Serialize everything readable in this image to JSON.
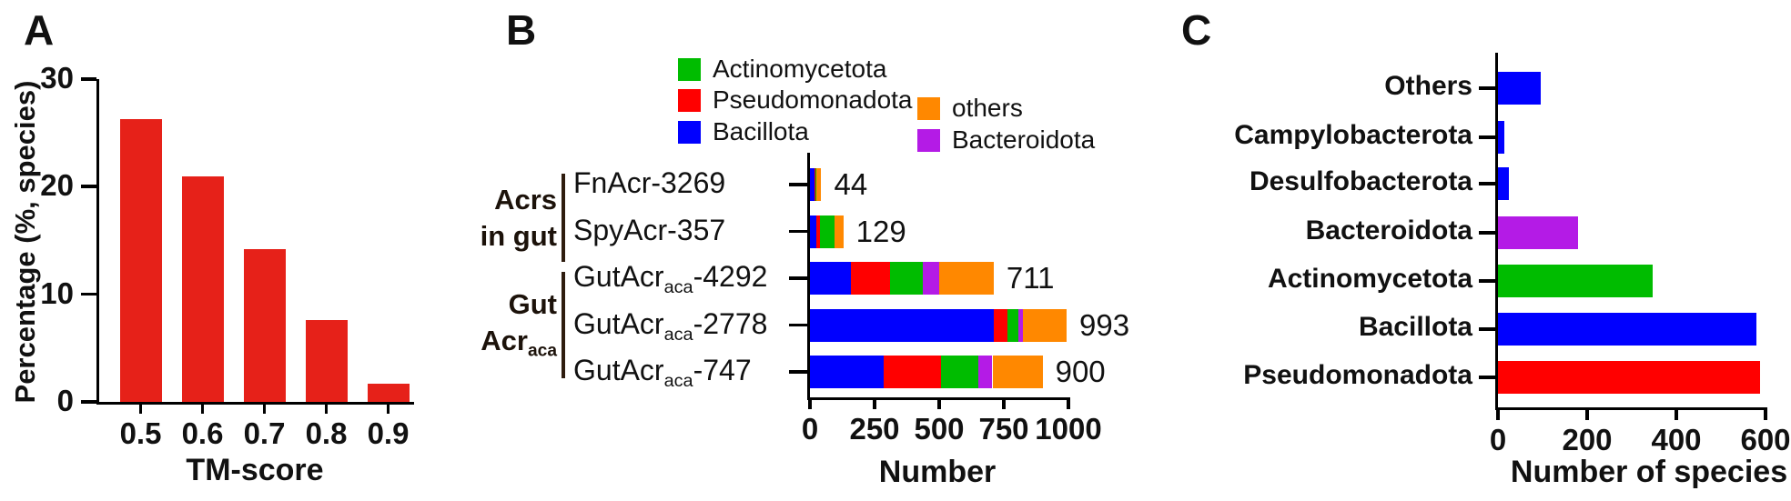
{
  "panels": {
    "a": {
      "letter": "A"
    },
    "b": {
      "letter": "B"
    },
    "c": {
      "letter": "C"
    }
  },
  "colors": {
    "panel_a_bar_red": "#e62119",
    "bacillota_blue": "#0000ff",
    "pseudomonadota_red": "#ff0000",
    "actinomycetota_green": "#00bc00",
    "others_orange": "#ff8800",
    "bacteroidota_purple": "#b41be6",
    "axis_black": "#000000"
  },
  "chart_data": [
    {
      "panel": "A",
      "type": "bar",
      "categories": [
        "0.5",
        "0.6",
        "0.7",
        "0.8",
        "0.9"
      ],
      "values": [
        26.3,
        21,
        14.2,
        7.6,
        1.7
      ],
      "xlabel": "TM-score",
      "ylabel": "Percentage (%, species)",
      "ylim": [
        0,
        30
      ],
      "yticks": [
        0,
        10,
        20,
        30
      ],
      "bar_color": "#e62119",
      "grid": false
    },
    {
      "panel": "B",
      "type": "stacked_bar_horizontal",
      "xlabel": "Number",
      "xlim": [
        0,
        1000
      ],
      "xticks": [
        0,
        250,
        500,
        750,
        1000
      ],
      "legend": [
        {
          "label": "Actinomycetota",
          "color": "#00bc00"
        },
        {
          "label": "Pseudomonadota",
          "color": "#ff0000"
        },
        {
          "label": "Bacillota",
          "color": "#0000ff"
        },
        {
          "label": "others",
          "color": "#ff8800"
        },
        {
          "label": "Bacteroidota",
          "color": "#b41be6"
        }
      ],
      "group_labels": [
        {
          "line1": "Acrs",
          "line2_main": "in gut",
          "line2_sub": ""
        },
        {
          "line1": "Gut",
          "line2_main": "Acr",
          "line2_sub": "aca"
        }
      ],
      "rows": [
        {
          "label": "FnAcr-3269",
          "label_parts": {
            "main": "FnAcr-3269",
            "sub": "",
            "suffix": ""
          },
          "group": "Acrs in gut",
          "total": 44,
          "segments": [
            {
              "name": "Bacillota",
              "value": 16
            },
            {
              "name": "Pseudomonadota",
              "value": 4
            },
            {
              "name": "Actinomycetota",
              "value": 4
            },
            {
              "name": "Bacteroidota",
              "value": 2
            },
            {
              "name": "others",
              "value": 18
            }
          ]
        },
        {
          "label": "SpyAcr-357",
          "label_parts": {
            "main": "SpyAcr-357",
            "sub": "",
            "suffix": ""
          },
          "group": "Acrs in gut",
          "total": 129,
          "segments": [
            {
              "name": "Bacillota",
              "value": 24
            },
            {
              "name": "Pseudomonadota",
              "value": 14
            },
            {
              "name": "Actinomycetota",
              "value": 56
            },
            {
              "name": "others",
              "value": 35
            }
          ]
        },
        {
          "label": "GutAcr aca -4292",
          "label_parts": {
            "main": "GutAcr",
            "sub": "aca",
            "suffix": "-4292"
          },
          "group": "Gut Acr aca",
          "total": 711,
          "segments": [
            {
              "name": "Bacillota",
              "value": 160
            },
            {
              "name": "Pseudomonadota",
              "value": 150
            },
            {
              "name": "Actinomycetota",
              "value": 125
            },
            {
              "name": "Bacteroidota",
              "value": 66
            },
            {
              "name": "others",
              "value": 210
            }
          ]
        },
        {
          "label": "GutAcr aca -2778",
          "label_parts": {
            "main": "GutAcr",
            "sub": "aca",
            "suffix": "-2778"
          },
          "group": "Gut Acr aca",
          "total": 993,
          "segments": [
            {
              "name": "Bacillota",
              "value": 711
            },
            {
              "name": "Pseudomonadota",
              "value": 52
            },
            {
              "name": "Actinomycetota",
              "value": 42
            },
            {
              "name": "Bacteroidota",
              "value": 20
            },
            {
              "name": "others",
              "value": 168
            }
          ]
        },
        {
          "label": "GutAcr aca -747",
          "label_parts": {
            "main": "GutAcr",
            "sub": "aca",
            "suffix": "-747"
          },
          "group": "Gut Acr aca",
          "total": 900,
          "segments": [
            {
              "name": "Bacillota",
              "value": 286
            },
            {
              "name": "Pseudomonadota",
              "value": 220
            },
            {
              "name": "Actinomycetota",
              "value": 145
            },
            {
              "name": "Bacteroidota",
              "value": 55
            },
            {
              "name": "others",
              "value": 194
            }
          ]
        }
      ],
      "grid": false
    },
    {
      "panel": "C",
      "type": "bar_horizontal",
      "xlabel": "Number of species",
      "xlim": [
        0,
        600
      ],
      "xticks": [
        0,
        200,
        400,
        600
      ],
      "categories": [
        "Others",
        "Campylobacterota",
        "Desulfobacterota",
        "Bacteroidota",
        "Actinomycetota",
        "Bacillota",
        "Pseudomonadota"
      ],
      "values": [
        96,
        15,
        25,
        180,
        346,
        580,
        588
      ],
      "colors": [
        "#0000ff",
        "#0000ff",
        "#0000ff",
        "#b41be6",
        "#00bc00",
        "#0000ff",
        "#ff0000"
      ],
      "grid": false
    }
  ]
}
